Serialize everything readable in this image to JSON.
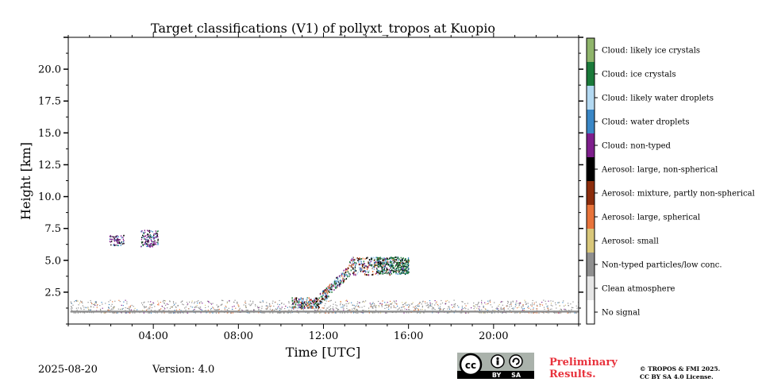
{
  "chart_data": {
    "type": "heatmap",
    "title": "Target classifications (V1) of pollyxt_tropos at Kuopio",
    "xlabel": "Time [UTC]",
    "ylabel": "Height [km]",
    "xlim": [
      0,
      24
    ],
    "ylim": [
      0,
      22.5
    ],
    "x_ticks": [
      4,
      8,
      12,
      16,
      20
    ],
    "x_tick_labels": [
      "04:00",
      "08:00",
      "12:00",
      "16:00",
      "20:00"
    ],
    "y_ticks": [
      2.5,
      5.0,
      7.5,
      10.0,
      12.5,
      15.0,
      17.5,
      20.0
    ],
    "y_tick_labels": [
      "2.5",
      "5.0",
      "7.5",
      "10.0",
      "12.5",
      "15.0",
      "17.5",
      "20.0"
    ],
    "legend_position": "right",
    "classes": [
      {
        "code": 0,
        "label": "No signal",
        "color": "#ffffff"
      },
      {
        "code": 1,
        "label": "Clean atmosphere",
        "color": "#e6e6e6"
      },
      {
        "code": 2,
        "label": "Non-typed particles/low conc.",
        "color": "#8f8f8f"
      },
      {
        "code": 3,
        "label": "Aerosol: small",
        "color": "#d9c77a"
      },
      {
        "code": 4,
        "label": "Aerosol: large, spherical",
        "color": "#e8743b"
      },
      {
        "code": 5,
        "label": "Aerosol: mixture, partly non-spherical",
        "color": "#8c2d0c"
      },
      {
        "code": 6,
        "label": "Aerosol: large, non-spherical",
        "color": "#000000"
      },
      {
        "code": 7,
        "label": "Cloud: non-typed",
        "color": "#7e1e8c"
      },
      {
        "code": 8,
        "label": "Cloud: water droplets",
        "color": "#3a87c6"
      },
      {
        "code": 9,
        "label": "Cloud: likely water droplets",
        "color": "#b3d9f2"
      },
      {
        "code": 10,
        "label": "Cloud: ice crystals",
        "color": "#1b7a3a"
      },
      {
        "code": 11,
        "label": "Cloud: likely ice crystals",
        "color": "#8fb56b"
      }
    ],
    "features": [
      {
        "name": "near-surface aerosol layer",
        "t_start": 0.1,
        "t_end": 24.0,
        "h_bottom": 0.9,
        "h_top": 1.9,
        "class_code": 2
      },
      {
        "name": "cloud patch 1",
        "t_start": 1.9,
        "t_end": 2.6,
        "h_bottom": 6.2,
        "h_top": 7.0,
        "class_code": 7
      },
      {
        "name": "cloud patch 2",
        "t_start": 3.4,
        "t_end": 4.2,
        "h_bottom": 6.1,
        "h_top": 7.4,
        "class_code": 7
      },
      {
        "name": "rising cloud layer",
        "t_start": 10.5,
        "t_end": 16.0,
        "h_bottom": 1.0,
        "h_top": 5.5,
        "class_code": 7
      },
      {
        "name": "cloud layer",
        "t_start": 14.5,
        "t_end": 16.0,
        "h_bottom": 4.0,
        "h_top": 5.3,
        "class_code": 10
      }
    ]
  },
  "footer": {
    "date": "2025-08-20",
    "version": "Version: 4.0",
    "license_badge_text": "BY SA",
    "preliminary_line1": "Preliminary",
    "preliminary_line2": "Results.",
    "copyright_line1": "© TROPOS & FMI 2025.",
    "copyright_line2": "CC BY SA 4.0 License."
  }
}
